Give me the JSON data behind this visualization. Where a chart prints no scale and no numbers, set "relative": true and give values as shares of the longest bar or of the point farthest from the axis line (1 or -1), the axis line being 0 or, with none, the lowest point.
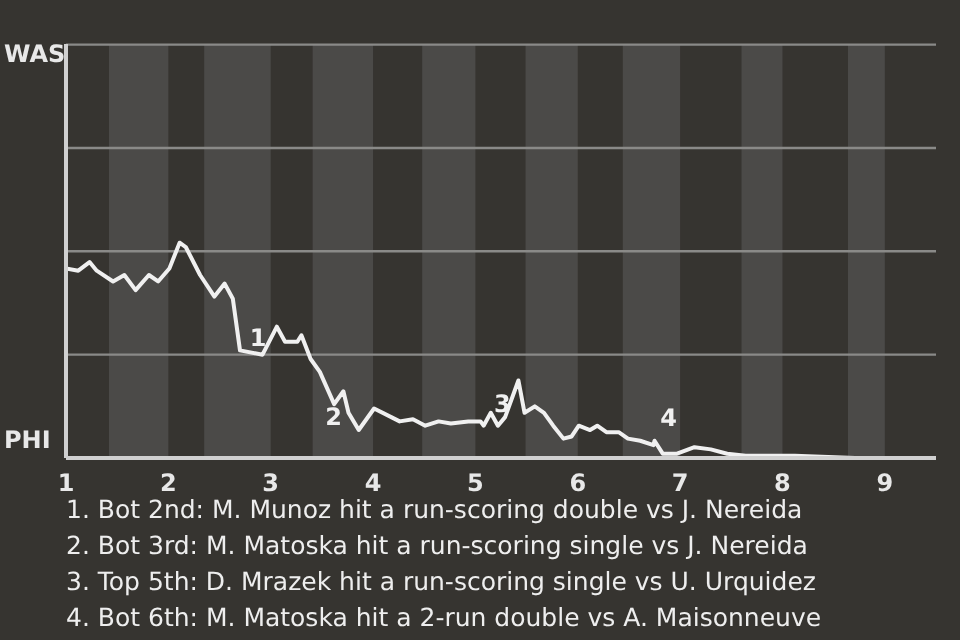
{
  "chart_data": {
    "type": "line",
    "relative": true,
    "x": [
      1,
      1.12,
      1.23,
      1.3,
      1.46,
      1.57,
      1.68,
      1.81,
      1.9,
      2.01,
      2.11,
      2.17,
      2.31,
      2.45,
      2.55,
      2.63,
      2.7,
      2.92,
      3.06,
      3.14,
      3.26,
      3.3,
      3.39,
      3.48,
      3.62,
      3.71,
      3.76,
      3.86,
      4.01,
      4.26,
      4.39,
      4.51,
      4.64,
      4.76,
      4.93,
      5.05,
      5.08,
      5.15,
      5.22,
      5.29,
      5.42,
      5.48,
      5.58,
      5.67,
      5.76,
      5.86,
      5.94,
      6.01,
      6.12,
      6.19,
      6.28,
      6.4,
      6.49,
      6.61,
      6.74,
      6.75,
      6.83,
      6.97,
      7.14,
      7.3,
      7.46,
      7.64,
      8.12,
      8.71,
      9.5
    ],
    "series": [
      {
        "color": "#f0f0f0",
        "values": [
          0.88,
          0.87,
          0.91,
          0.87,
          0.82,
          0.85,
          0.78,
          0.85,
          0.82,
          0.88,
          1,
          0.98,
          0.85,
          0.75,
          0.81,
          0.74,
          0.5,
          0.48,
          0.61,
          0.54,
          0.54,
          0.57,
          0.46,
          0.4,
          0.25,
          0.31,
          0.21,
          0.13,
          0.23,
          0.17,
          0.18,
          0.15,
          0.17,
          0.16,
          0.17,
          0.17,
          0.15,
          0.21,
          0.15,
          0.19,
          0.36,
          0.21,
          0.24,
          0.21,
          0.15,
          0.09,
          0.1,
          0.15,
          0.13,
          0.15,
          0.12,
          0.12,
          0.09,
          0.08,
          0.06,
          0.08,
          0.02,
          0.02,
          0.05,
          0.04,
          0.02,
          0.01,
          0.01,
          0,
          0
        ]
      }
    ],
    "xlim": [
      1,
      9.5
    ],
    "xticks": [
      1,
      2,
      3,
      4,
      5,
      6,
      7,
      8,
      9
    ],
    "marker": "none",
    "line_style": "solid",
    "ref_lines": [
      {
        "axis": "y",
        "value": 0.48,
        "color": "#8a8a88"
      },
      {
        "axis": "y",
        "value": 0.96,
        "color": "#8a8a88"
      },
      {
        "axis": "y",
        "value": 1.44,
        "color": "#8a8a88"
      },
      {
        "axis": "y",
        "value": 1.92,
        "color": "#8a8a88"
      }
    ],
    "bands": [
      {
        "axis": "x",
        "from": 1.42,
        "to": 2,
        "color": "#4b4a48"
      },
      {
        "axis": "x",
        "from": 2.35,
        "to": 3,
        "color": "#4b4a48"
      },
      {
        "axis": "x",
        "from": 3.41,
        "to": 4,
        "color": "#4b4a48"
      },
      {
        "axis": "x",
        "from": 4.48,
        "to": 5,
        "color": "#4b4a48"
      },
      {
        "axis": "x",
        "from": 5.49,
        "to": 6,
        "color": "#4b4a48"
      },
      {
        "axis": "x",
        "from": 6.44,
        "to": 7,
        "color": "#4b4a48"
      },
      {
        "axis": "x",
        "from": 7.6,
        "to": 8,
        "color": "#4b4a48"
      },
      {
        "axis": "x",
        "from": 8.64,
        "to": 9,
        "color": "#4b4a48"
      }
    ],
    "annotations": [
      "WAS",
      "PHI",
      {
        "text": "1",
        "x": 2.7,
        "y": 0.5
      },
      {
        "text": "2",
        "x": 3.79,
        "y": 0.21
      },
      {
        "text": "3",
        "x": 5.42,
        "y": 0.36
      },
      {
        "text": "4",
        "x": 6.83,
        "y": 0.02
      },
      "1. Bot 2nd: M. Munoz hit a run-scoring double vs J. Nereida",
      "2. Bot 3rd: M. Matoska hit a run-scoring single vs J. Nereida",
      "3. Top 5th: D. Mrazek hit a run-scoring single vs U. Urquidez",
      "4. Bot 6th: M. Matoska hit a 2-run double vs A. Maisonneuve"
    ]
  }
}
